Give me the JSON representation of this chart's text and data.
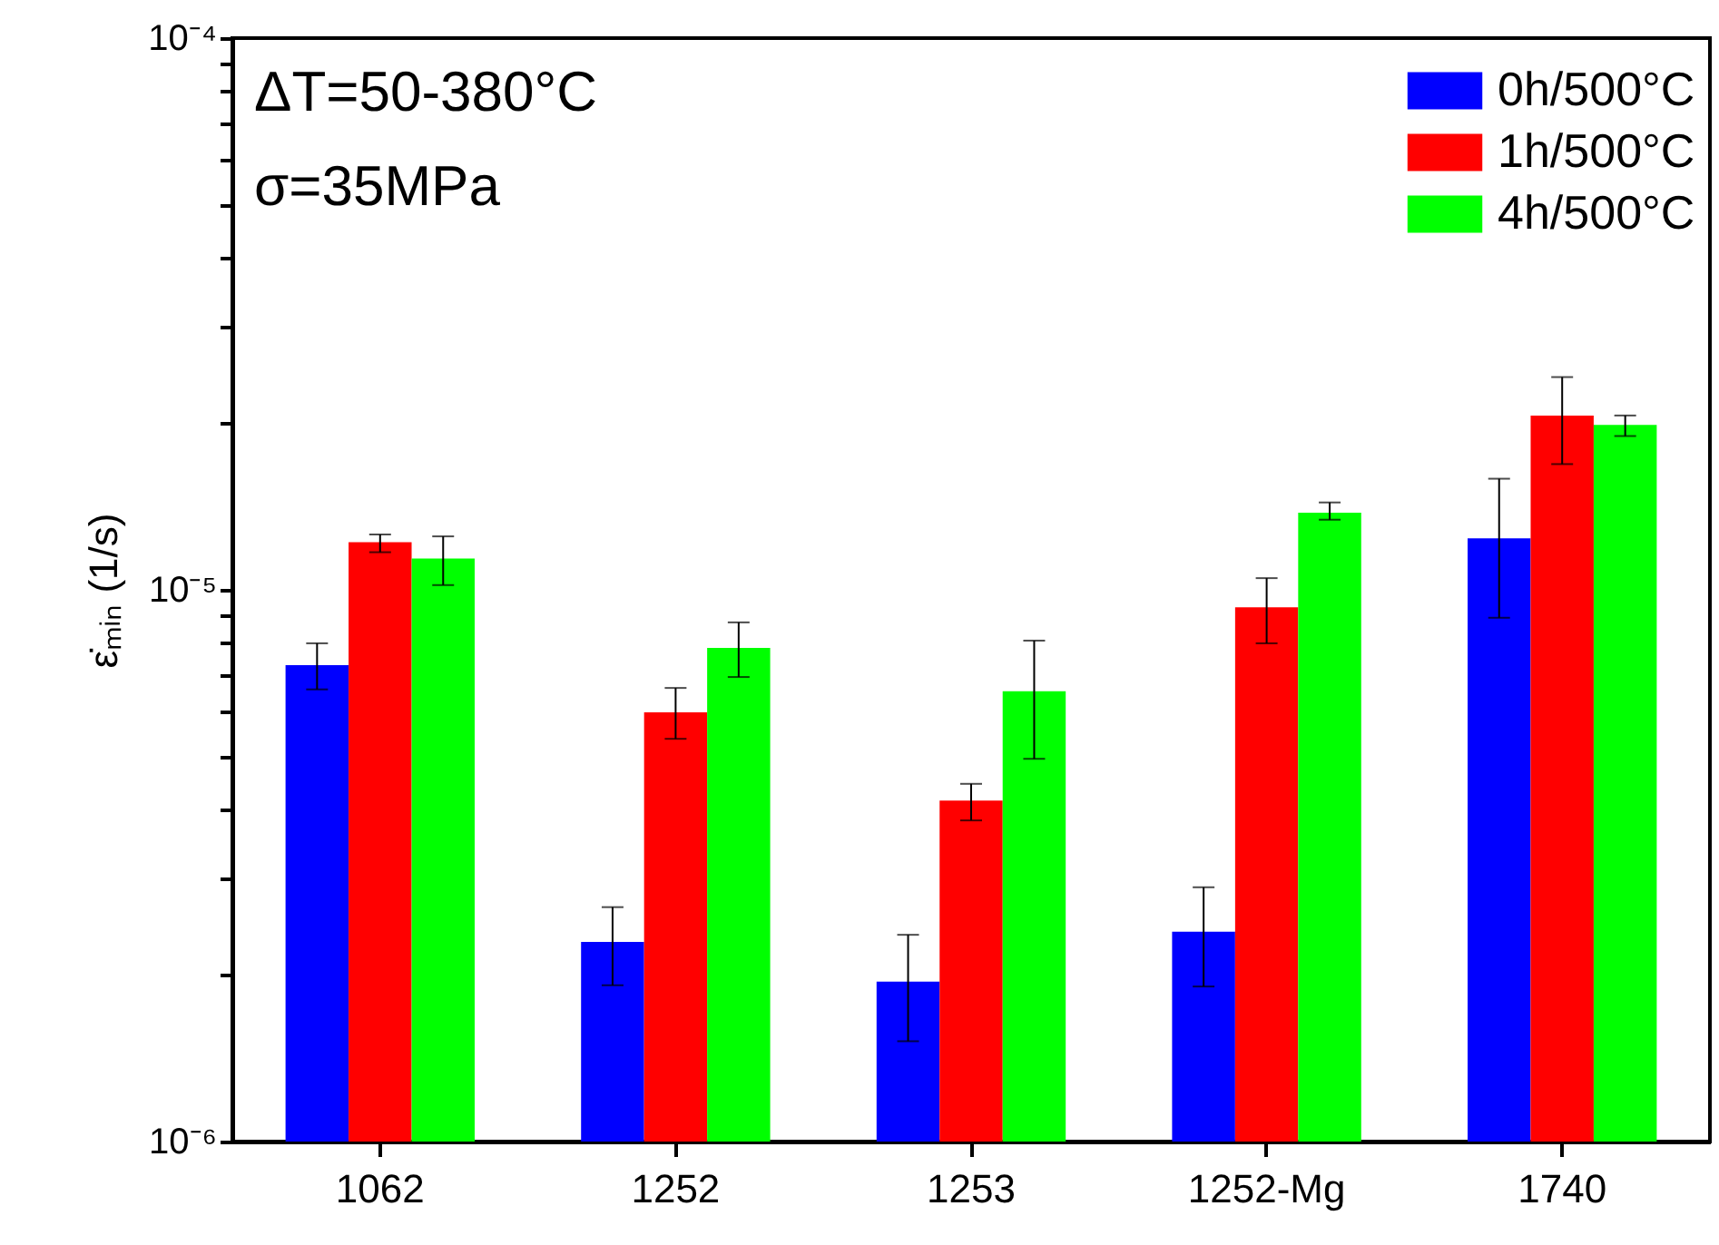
{
  "chart_data": {
    "type": "bar",
    "ylabel": "ε̇ₘᵢₙ (1/s)",
    "categories": [
      "1062",
      "1252",
      "1253",
      "1252-Mg",
      "1740"
    ],
    "series": [
      {
        "name": "0h/500°C",
        "color": "#0000ff",
        "values": [
          7.3e-06,
          2.3e-06,
          1.95e-06,
          2.4e-06,
          1.24e-05
        ],
        "errors": [
          [
            6.6e-06,
            8e-06
          ],
          [
            1.92e-06,
            2.66e-06
          ],
          [
            1.52e-06,
            2.37e-06
          ],
          [
            1.91e-06,
            2.89e-06
          ],
          [
            8.9e-06,
            1.59e-05
          ]
        ]
      },
      {
        "name": "1h/500°C",
        "color": "#ff0000",
        "values": [
          1.22e-05,
          6e-06,
          4.15e-06,
          9.3e-06,
          2.07e-05
        ],
        "errors": [
          [
            1.17e-05,
            1.26e-05
          ],
          [
            5.37e-06,
            6.64e-06
          ],
          [
            3.82e-06,
            4.45e-06
          ],
          [
            8e-06,
            1.05e-05
          ],
          [
            1.69e-05,
            2.43e-05
          ]
        ]
      },
      {
        "name": "4h/500°C",
        "color": "#00ff00",
        "values": [
          1.14e-05,
          7.85e-06,
          6.55e-06,
          1.38e-05,
          1.99e-05
        ],
        "errors": [
          [
            1.02e-05,
            1.25e-05
          ],
          [
            6.95e-06,
            8.73e-06
          ],
          [
            4.94e-06,
            8.09e-06
          ],
          [
            1.34e-05,
            1.44e-05
          ],
          [
            1.9e-05,
            2.07e-05
          ]
        ]
      }
    ],
    "log": "y",
    "ylim": [
      1e-06,
      0.0001
    ],
    "yticks": [
      {
        "value": 1e-06,
        "label": "10⁻⁶"
      },
      {
        "value": 2e-06,
        "label": null
      },
      {
        "value": 3e-06,
        "label": null
      },
      {
        "value": 4e-06,
        "label": null
      },
      {
        "value": 5e-06,
        "label": null
      },
      {
        "value": 6e-06,
        "label": null
      },
      {
        "value": 7e-06,
        "label": null
      },
      {
        "value": 8e-06,
        "label": null
      },
      {
        "value": 9e-06,
        "label": null
      },
      {
        "value": 1e-05,
        "label": "10⁻⁵"
      },
      {
        "value": 2e-05,
        "label": null
      },
      {
        "value": 3e-05,
        "label": null
      },
      {
        "value": 4e-05,
        "label": null
      },
      {
        "value": 5e-05,
        "label": null
      },
      {
        "value": 6e-05,
        "label": null
      },
      {
        "value": 7e-05,
        "label": null
      },
      {
        "value": 8e-05,
        "label": null
      },
      {
        "value": 9e-05,
        "label": null
      },
      {
        "value": 0.0001,
        "label": "10⁻⁴"
      }
    ],
    "legend": "top right",
    "grid": false,
    "annotations": [
      "ΔT=50-380°C",
      "σ=35MPa"
    ]
  }
}
